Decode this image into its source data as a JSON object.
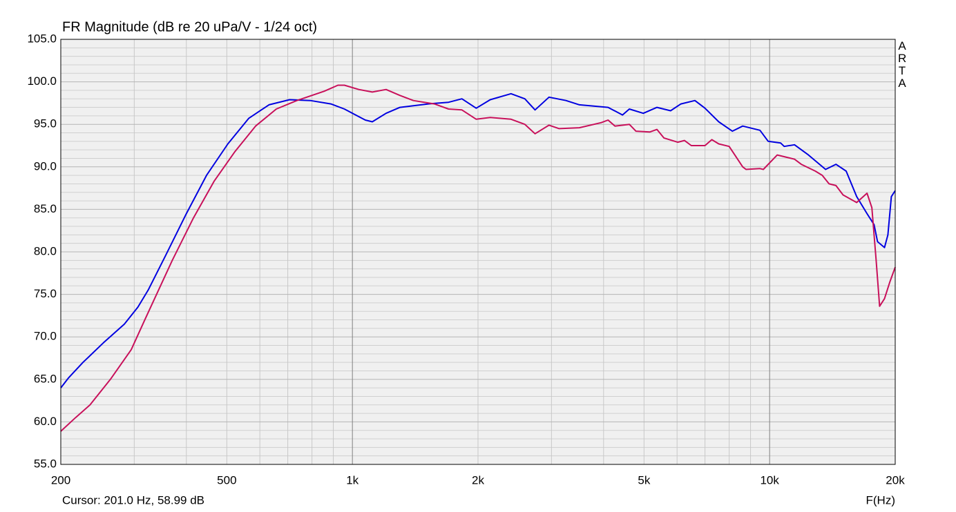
{
  "chart_data": {
    "type": "line",
    "title": "FR Magnitude (dB re 20 uPa/V - 1/24 oct)",
    "brand": "ARTA",
    "cursor": "Cursor: 201.0 Hz, 58.99 dB",
    "x_label": "F(Hz)",
    "xscale": "log",
    "xlim": [
      200,
      20000
    ],
    "xticks": [
      200,
      500,
      {
        "value": 1000,
        "label": "1k"
      },
      {
        "value": 2000,
        "label": "2k"
      },
      {
        "value": 5000,
        "label": "5k"
      },
      {
        "value": 10000,
        "label": "10k"
      },
      {
        "value": 20000,
        "label": "20k"
      }
    ],
    "x_major_grid": [
      1000,
      10000
    ],
    "x_minor_grid": [
      300,
      400,
      500,
      600,
      700,
      800,
      900,
      2000,
      3000,
      4000,
      5000,
      6000,
      7000,
      8000,
      9000
    ],
    "ylim": [
      55,
      105
    ],
    "yticks": [
      {
        "value": 55,
        "label": "55.0"
      },
      {
        "value": 60,
        "label": "60.0"
      },
      {
        "value": 65,
        "label": "65.0"
      },
      {
        "value": 70,
        "label": "70.0"
      },
      {
        "value": 75,
        "label": "75.0"
      },
      {
        "value": 80,
        "label": "80.0"
      },
      {
        "value": 85,
        "label": "85.0"
      },
      {
        "value": 90,
        "label": "90.0"
      },
      {
        "value": 95,
        "label": "95.0"
      },
      {
        "value": 100,
        "label": "100.0"
      },
      {
        "value": 105,
        "label": "105.0"
      }
    ],
    "y_minor_grid": [
      56,
      57,
      58,
      59,
      61,
      62,
      63,
      64,
      66,
      67,
      68,
      69,
      71,
      72,
      73,
      74,
      76,
      77,
      78,
      79,
      81,
      82,
      83,
      84,
      86,
      87,
      88,
      89,
      91,
      92,
      93,
      94,
      96,
      97,
      98,
      99,
      101,
      102,
      103,
      104
    ],
    "grid": true,
    "series": [
      {
        "color": "#0000e0",
        "x": [
          200,
          209,
          226,
          253,
          284,
          306,
          324,
          356,
          400,
          447,
          503,
          564,
          631,
          707,
          793,
          888,
          957,
          1074,
          1116,
          1204,
          1300,
          1520,
          1700,
          1830,
          1980,
          2140,
          2400,
          2590,
          2740,
          2960,
          3250,
          3500,
          4100,
          4440,
          4610,
          4980,
          5370,
          5790,
          6130,
          6620,
          7000,
          7550,
          8140,
          8620,
          9480,
          9920,
          10630,
          10840,
          11470,
          12390,
          13620,
          14420,
          15260,
          16170,
          17120,
          17800,
          18140,
          18850,
          19210,
          19580,
          20000
        ],
        "values": [
          64.0,
          65.2,
          67.0,
          69.3,
          71.5,
          73.5,
          75.5,
          79.5,
          84.5,
          89.0,
          92.7,
          95.7,
          97.3,
          97.9,
          97.8,
          97.4,
          96.8,
          95.5,
          95.3,
          96.3,
          97.0,
          97.4,
          97.6,
          98.0,
          96.9,
          97.9,
          98.6,
          98.0,
          96.7,
          98.2,
          97.8,
          97.3,
          97.0,
          96.1,
          96.8,
          96.3,
          97.0,
          96.6,
          97.4,
          97.8,
          96.9,
          95.3,
          94.2,
          94.8,
          94.3,
          93.0,
          92.8,
          92.4,
          92.6,
          91.4,
          89.7,
          90.3,
          89.5,
          86.5,
          84.5,
          83.2,
          81.2,
          80.5,
          82.0,
          86.5,
          87.2
        ]
      },
      {
        "color": "#c8105a",
        "x": [
          200,
          217,
          235,
          263,
          295,
          318,
          370,
          416,
          466,
          523,
          586,
          657,
          736,
          856,
          923,
          957,
          1036,
          1116,
          1204,
          1300,
          1400,
          1572,
          1700,
          1830,
          1980,
          2140,
          2400,
          2590,
          2740,
          2960,
          3130,
          3500,
          3950,
          4100,
          4260,
          4610,
          4780,
          5160,
          5370,
          5580,
          6020,
          6250,
          6490,
          7000,
          7270,
          7550,
          8000,
          8620,
          8780,
          9480,
          9660,
          10430,
          11470,
          11910,
          12870,
          13370,
          13880,
          14420,
          15000,
          16170,
          17120,
          17580,
          18000,
          18350,
          18850,
          19430,
          20000
        ],
        "values": [
          58.9,
          60.5,
          62.0,
          65.0,
          68.5,
          72.0,
          79.0,
          84.0,
          88.3,
          91.8,
          94.8,
          96.8,
          97.8,
          98.9,
          99.6,
          99.6,
          99.1,
          98.8,
          99.1,
          98.4,
          97.8,
          97.4,
          96.8,
          96.7,
          95.6,
          95.8,
          95.6,
          95.0,
          93.9,
          94.9,
          94.5,
          94.6,
          95.2,
          95.5,
          94.8,
          95.0,
          94.2,
          94.1,
          94.4,
          93.4,
          92.9,
          93.1,
          92.5,
          92.5,
          93.2,
          92.7,
          92.4,
          90.0,
          89.7,
          89.8,
          89.7,
          91.4,
          90.9,
          90.3,
          89.5,
          89.0,
          88.0,
          87.8,
          86.7,
          85.8,
          86.9,
          85.2,
          79.0,
          73.6,
          74.5,
          76.5,
          78.2
        ]
      }
    ]
  }
}
